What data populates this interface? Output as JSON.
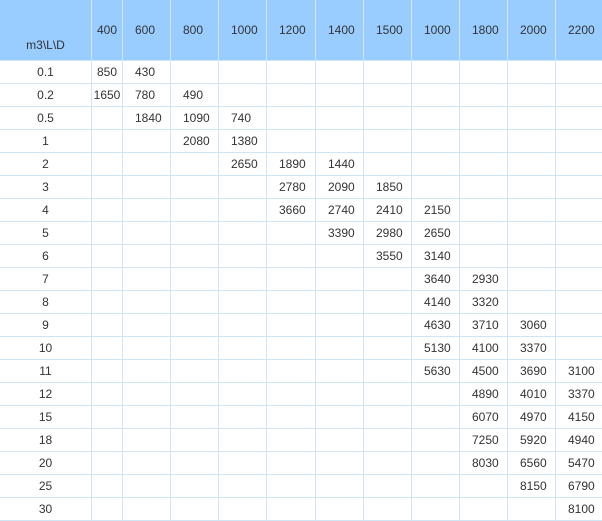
{
  "table": {
    "corner_label": "m3\\L\\D",
    "columns": [
      "400",
      "600",
      "800",
      "1000",
      "1200",
      "1400",
      "1500",
      "1000",
      "1800",
      "2000",
      "2200"
    ],
    "rows": [
      {
        "label": "0.1",
        "values": [
          "850",
          "430",
          "",
          "",
          "",
          "",
          "",
          "",
          "",
          "",
          ""
        ]
      },
      {
        "label": "0.2",
        "values": [
          "1650",
          "780",
          "490",
          "",
          "",
          "",
          "",
          "",
          "",
          "",
          ""
        ]
      },
      {
        "label": "0.5",
        "values": [
          "",
          "1840",
          "1090",
          "740",
          "",
          "",
          "",
          "",
          "",
          "",
          ""
        ]
      },
      {
        "label": "1",
        "values": [
          "",
          "",
          "2080",
          "1380",
          "",
          "",
          "",
          "",
          "",
          "",
          ""
        ]
      },
      {
        "label": "2",
        "values": [
          "",
          "",
          "",
          "2650",
          "1890",
          "1440",
          "",
          "",
          "",
          "",
          ""
        ]
      },
      {
        "label": "3",
        "values": [
          "",
          "",
          "",
          "",
          "2780",
          "2090",
          "1850",
          "",
          "",
          "",
          ""
        ]
      },
      {
        "label": "4",
        "values": [
          "",
          "",
          "",
          "",
          "3660",
          "2740",
          "2410",
          "2150",
          "",
          "",
          ""
        ]
      },
      {
        "label": "5",
        "values": [
          "",
          "",
          "",
          "",
          "",
          "3390",
          "2980",
          "2650",
          "",
          "",
          ""
        ]
      },
      {
        "label": "6",
        "values": [
          "",
          "",
          "",
          "",
          "",
          "",
          "3550",
          "3140",
          "",
          "",
          ""
        ]
      },
      {
        "label": "7",
        "values": [
          "",
          "",
          "",
          "",
          "",
          "",
          "",
          "3640",
          "2930",
          "",
          ""
        ]
      },
      {
        "label": "8",
        "values": [
          "",
          "",
          "",
          "",
          "",
          "",
          "",
          "4140",
          "3320",
          "",
          ""
        ]
      },
      {
        "label": "9",
        "values": [
          "",
          "",
          "",
          "",
          "",
          "",
          "",
          "4630",
          "3710",
          "3060",
          ""
        ]
      },
      {
        "label": "10",
        "values": [
          "",
          "",
          "",
          "",
          "",
          "",
          "",
          "5130",
          "4100",
          "3370",
          ""
        ]
      },
      {
        "label": "11",
        "values": [
          "",
          "",
          "",
          "",
          "",
          "",
          "",
          "5630",
          "4500",
          "3690",
          "3100"
        ]
      },
      {
        "label": "12",
        "values": [
          "",
          "",
          "",
          "",
          "",
          "",
          "",
          "",
          "4890",
          "4010",
          "3370"
        ]
      },
      {
        "label": "15",
        "values": [
          "",
          "",
          "",
          "",
          "",
          "",
          "",
          "",
          "6070",
          "4970",
          "4150"
        ]
      },
      {
        "label": "18",
        "values": [
          "",
          "",
          "",
          "",
          "",
          "",
          "",
          "",
          "7250",
          "5920",
          "4940"
        ]
      },
      {
        "label": "20",
        "values": [
          "",
          "",
          "",
          "",
          "",
          "",
          "",
          "",
          "8030",
          "6560",
          "5470"
        ]
      },
      {
        "label": "25",
        "values": [
          "",
          "",
          "",
          "",
          "",
          "",
          "",
          "",
          "",
          "8150",
          "6790"
        ]
      },
      {
        "label": "30",
        "values": [
          "",
          "",
          "",
          "",
          "",
          "",
          "",
          "",
          "",
          "",
          "8100"
        ]
      }
    ]
  },
  "colors": {
    "header_bg": "#99ccff",
    "border": "#cfe6f5",
    "text": "#333333"
  }
}
